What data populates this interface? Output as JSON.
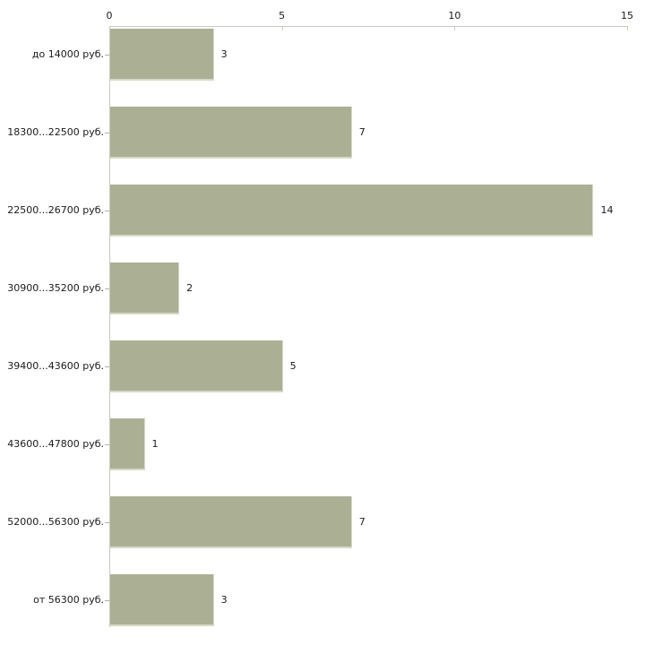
{
  "chart_data": {
    "type": "bar",
    "orientation": "horizontal",
    "categories": [
      "до 14000 руб.",
      "18300...22500 руб.",
      "22500...26700 руб.",
      "30900...35200 руб.",
      "39400...43600 руб.",
      "43600...47800 руб.",
      "52000...56300 руб.",
      "от 56300 руб."
    ],
    "values": [
      3,
      7,
      14,
      2,
      5,
      1,
      7,
      3
    ],
    "value_labels": [
      "3",
      "7",
      "14",
      "2",
      "5",
      "1",
      "7",
      "3"
    ],
    "xticks": [
      "0",
      "5",
      "10",
      "15"
    ],
    "xtick_values": [
      0,
      5,
      10,
      15
    ],
    "xlim": [
      0,
      15
    ],
    "legend": "none",
    "grid": "off",
    "colors": {
      "bar_fill": "#abb094",
      "bar_edge": "#d6d9c6",
      "axis_line": "#c9c9c3",
      "x_tick_mark": "#ccd0b0",
      "y_tick_mark": "#aeb2a0",
      "text": "#1a1a1a",
      "background": "#ffffff"
    }
  }
}
